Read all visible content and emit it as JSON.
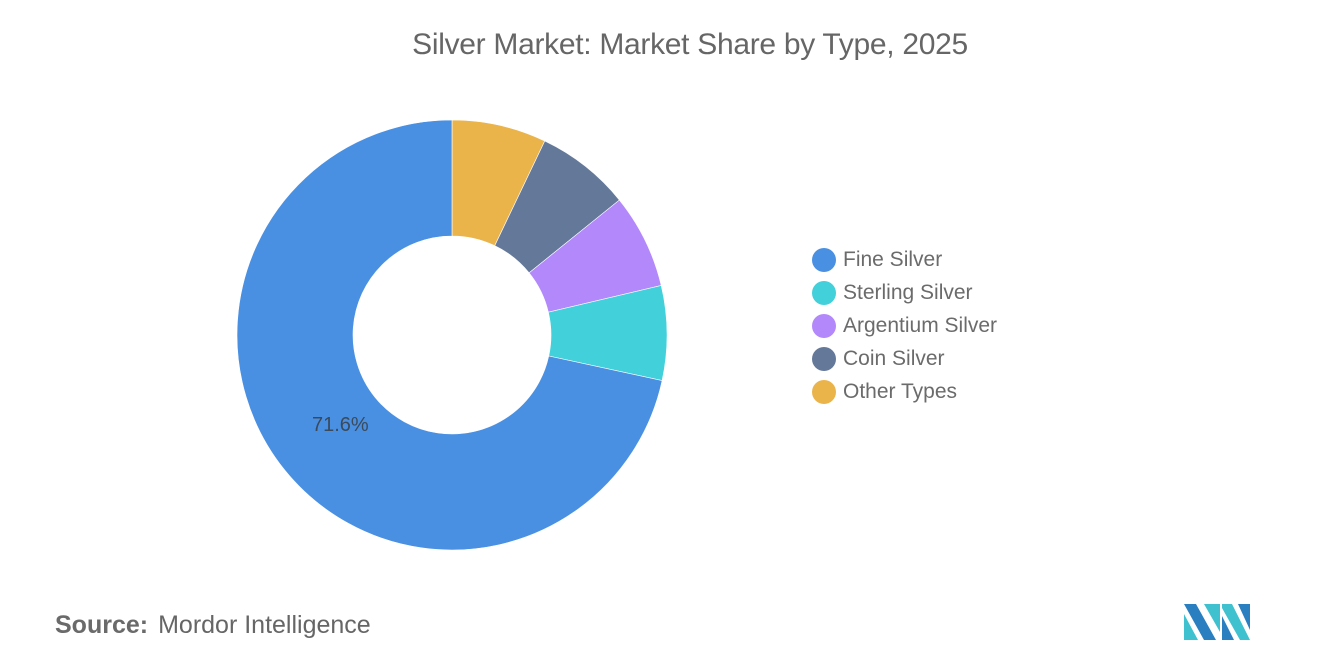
{
  "header": {
    "title": "Silver Market: Market Share by Type, 2025"
  },
  "chart_data": {
    "type": "pie",
    "variant": "donut",
    "title": "Silver Market: Market Share by Type, 2025",
    "categories": [
      "Fine Silver",
      "Sterling Silver",
      "Argentium Silver",
      "Coin Silver",
      "Other Types"
    ],
    "values": [
      71.6,
      7.1,
      7.1,
      7.1,
      7.1
    ],
    "unit": "%",
    "colors": [
      "#4a90e2",
      "#42d0db",
      "#b388fa",
      "#64789a",
      "#ebb44b"
    ],
    "data_labels": [
      {
        "category": "Fine Silver",
        "text": "71.6%"
      }
    ],
    "legend_position": "right",
    "note": "Only Fine Silver is labeled (71.6%); remaining slices estimated as ~equal shares of 28.4%."
  },
  "legend": {
    "items": [
      {
        "label": "Fine Silver",
        "color": "#4a90e2"
      },
      {
        "label": "Sterling Silver",
        "color": "#42d0db"
      },
      {
        "label": "Argentium Silver",
        "color": "#b388fa"
      },
      {
        "label": "Coin Silver",
        "color": "#64789a"
      },
      {
        "label": "Other Types",
        "color": "#ebb44b"
      }
    ]
  },
  "labels": {
    "fine_silver": "71.6%"
  },
  "footer": {
    "source_key": "Source:",
    "source_value": "Mordor Intelligence"
  },
  "logo": {
    "icon": "mordor-intelligence-logo-icon",
    "colors": [
      "#2a7fc1",
      "#3fc1cf"
    ]
  }
}
